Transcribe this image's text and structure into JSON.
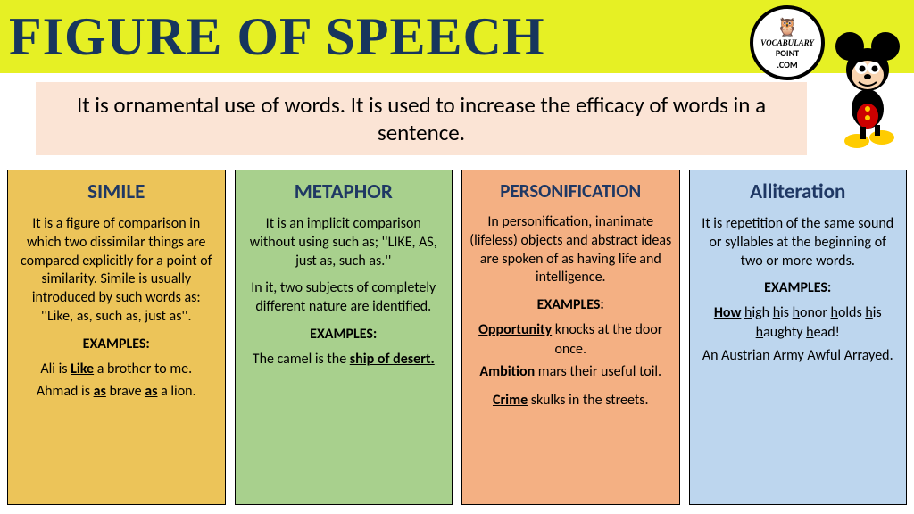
{
  "title": "FIGURE OF SPEECH",
  "title_bg": "#e6f024",
  "title_color": "#17365d",
  "logo": {
    "line1": "VOCABULARY",
    "line2": "POINT",
    "line3": ".COM"
  },
  "intro": "It is ornamental use of words. It is used to increase the efficacy of words in a sentence.",
  "intro_bg": "#fbe4d5",
  "cards": [
    {
      "title": "SIMILE",
      "bg": "#ecc459",
      "desc": "It is a figure of comparison in which two dissimilar things are compared explicitly for a point of similarity. Simile is usually introduced by such words as: ''Like, as, such as, just as''.",
      "examples_label": "EXAMPLES:",
      "ex1_html": "Ali is <span class='b u'>Like</span> a brother to me.",
      "ex2_html": "Ahmad is <span class='b u'>as</span> brave <span class='b u'>as</span> a lion."
    },
    {
      "title": "METAPHOR",
      "bg": "#a8d08d",
      "desc": "It is an implicit comparison without using such as; ''LIKE, AS, just as, such as.''",
      "sub": "In it, two subjects of completely different nature are identified.",
      "examples_label": "EXAMPLES:",
      "ex1_html": "The camel is the <span class='b u'>ship of desert.</span>"
    },
    {
      "title": "PERSONIFICATION",
      "bg": "#f4b083",
      "desc": "In personification, inanimate (lifeless) objects and abstract ideas are spoken of as having life and intelligence.",
      "examples_label": "EXAMPLES:",
      "ex1_html": "<span class='b u'>Opportunity</span> knocks at the door once.",
      "ex2_html": "<span class='b u'>Ambition</span> mars their useful toil.",
      "ex3_html": "<span class='b u'>Crime</span> skulks in the streets."
    },
    {
      "title": "Alliteration",
      "bg": "#bdd6ee",
      "desc": "It is repetition of the same sound or syllables at the beginning of two or more words.",
      "examples_label": "EXAMPLES:",
      "ex1_html": "<span class='b u'>How</span> <span class='u'>h</span>igh <span class='u'>h</span>is <span class='u'>h</span>onor <span class='u'>h</span>olds <span class='u'>h</span>is <span class='u'>h</span>aughty <span class='u'>h</span>ead!",
      "ex2_html": "An <span class='u'>A</span>ustrian <span class='u'>A</span>rmy <span class='u'>A</span>wful <span class='u'>A</span>rrayed."
    }
  ]
}
